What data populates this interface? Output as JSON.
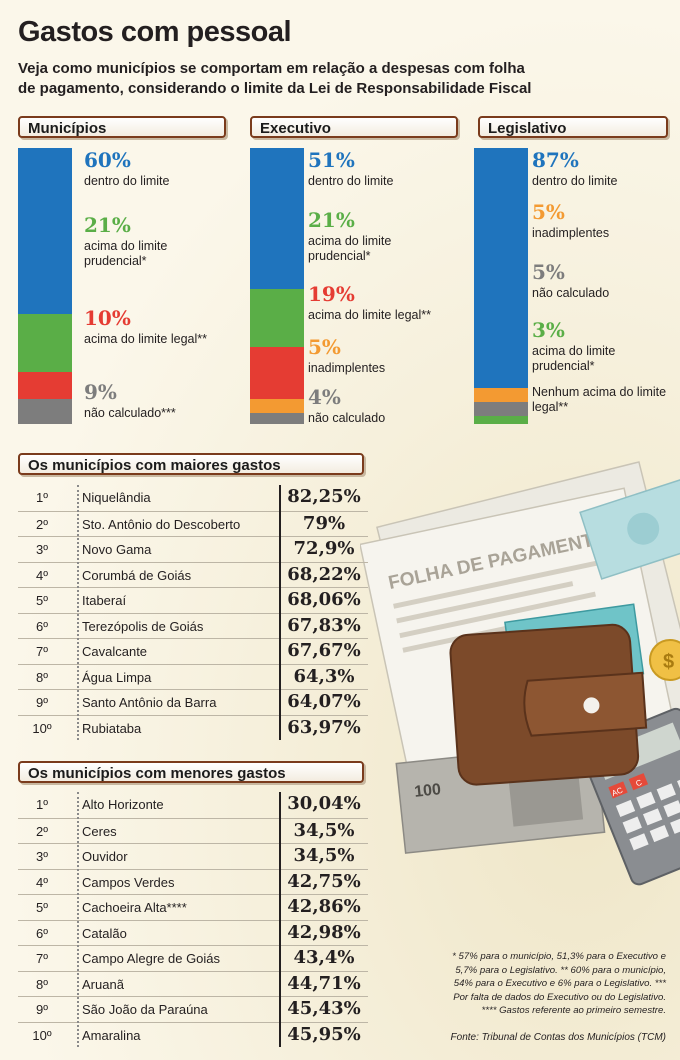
{
  "title": "Gastos com pessoal",
  "subtitle_line1": "Veja como municípios se comportam em relação a despesas com folha",
  "subtitle_line2": "de pagamento, considerando o limite da Lei de Responsabilidade Fiscal",
  "chart_data": [
    {
      "type": "bar",
      "title": "Municípios",
      "stacked": true,
      "series": [
        {
          "value": 60,
          "pct_label": "60%",
          "label": "dentro do limite",
          "color": "#1f74bd"
        },
        {
          "value": 21,
          "pct_label": "21%",
          "label": "acima do limite prudencial*",
          "color": "#5aae47"
        },
        {
          "value": 10,
          "pct_label": "10%",
          "label": "acima do limite legal**",
          "color": "#e53c33"
        },
        {
          "value": 9,
          "pct_label": "9%",
          "label": "não calculado***",
          "color": "#7d7d7d"
        }
      ]
    },
    {
      "type": "bar",
      "title": "Executivo",
      "stacked": true,
      "series": [
        {
          "value": 51,
          "pct_label": "51%",
          "label": "dentro do limite",
          "color": "#1f74bd"
        },
        {
          "value": 21,
          "pct_label": "21%",
          "label": "acima do limite prudencial*",
          "color": "#5aae47"
        },
        {
          "value": 19,
          "pct_label": "19%",
          "label": "acima do limite legal**",
          "color": "#e53c33"
        },
        {
          "value": 5,
          "pct_label": "5%",
          "label": "inadimplentes",
          "color": "#f39a32"
        },
        {
          "value": 4,
          "pct_label": "4%",
          "label": "não calculado",
          "color": "#7d7d7d"
        }
      ]
    },
    {
      "type": "bar",
      "title": "Legislativo",
      "stacked": true,
      "series": [
        {
          "value": 87,
          "pct_label": "87%",
          "label": "dentro do limite",
          "color": "#1f74bd"
        },
        {
          "value": 5,
          "pct_label": "5%",
          "label": "inadimplentes",
          "color": "#f39a32"
        },
        {
          "value": 5,
          "pct_label": "5%",
          "label": "não calculado",
          "color": "#7d7d7d"
        },
        {
          "value": 3,
          "pct_label": "3%",
          "label": "acima do limite prudencial*",
          "color": "#5aae47"
        },
        {
          "value": null,
          "pct_label": "",
          "label": "Nenhum acima do limite legal**",
          "color": ""
        }
      ]
    },
    {
      "type": "table",
      "title": "Os municípios com maiores gastos",
      "rows": [
        {
          "rank": "1º",
          "city": "Niquelândia",
          "value": "82,25%"
        },
        {
          "rank": "2º",
          "city": "Sto. Antônio do Descoberto",
          "value": "79%"
        },
        {
          "rank": "3º",
          "city": "Novo Gama",
          "value": "72,9%"
        },
        {
          "rank": "4º",
          "city": "Corumbá de Goiás",
          "value": "68,22%"
        },
        {
          "rank": "5º",
          "city": "Itaberaí",
          "value": "68,06%"
        },
        {
          "rank": "6º",
          "city": "Terezópolis de Goiás",
          "value": "67,83%"
        },
        {
          "rank": "7º",
          "city": "Cavalcante",
          "value": "67,67%"
        },
        {
          "rank": "8º",
          "city": "Água Limpa",
          "value": "64,3%"
        },
        {
          "rank": "9º",
          "city": "Santo Antônio da Barra",
          "value": "64,07%"
        },
        {
          "rank": "10º",
          "city": "Rubiataba",
          "value": "63,97%"
        }
      ]
    },
    {
      "type": "table",
      "title": "Os municípios com menores gastos",
      "rows": [
        {
          "rank": "1º",
          "city": "Alto Horizonte",
          "value": "30,04%"
        },
        {
          "rank": "2º",
          "city": "Ceres",
          "value": "34,5%"
        },
        {
          "rank": "3º",
          "city": "Ouvidor",
          "value": "34,5%"
        },
        {
          "rank": "4º",
          "city": "Campos Verdes",
          "value": "42,75%"
        },
        {
          "rank": "5º",
          "city": "Cachoeira Alta****",
          "value": "42,86%"
        },
        {
          "rank": "6º",
          "city": "Catalão",
          "value": "42,98%"
        },
        {
          "rank": "7º",
          "city": "Campo Alegre de Goiás",
          "value": "43,4%"
        },
        {
          "rank": "8º",
          "city": "Aruanã",
          "value": "44,71%"
        },
        {
          "rank": "9º",
          "city": "São João da Paraúna",
          "value": "45,43%"
        },
        {
          "rank": "10º",
          "city": "Amaralina",
          "value": "45,95%"
        }
      ]
    }
  ],
  "illustration": {
    "document_label": "FOLHA DE PAGAMENTO",
    "banknote_value_1": "100",
    "banknote_value_2": "100",
    "coin_symbol": "$",
    "calculator_key_1": "AC",
    "calculator_key_2": "C"
  },
  "footnote_lines": [
    "* 57% para o município, 51,3% para o Executivo e",
    "5,7% para o Legislativo. ** 60% para o município,",
    "54% para o Executivo e 6% para o Legislativo. ***",
    "Por falta de dados do Executivo ou do Legislativo.",
    "**** Gastos referente ao primeiro semestre."
  ],
  "source": "Fonte: Tribunal de Contas dos Municípios (TCM)"
}
